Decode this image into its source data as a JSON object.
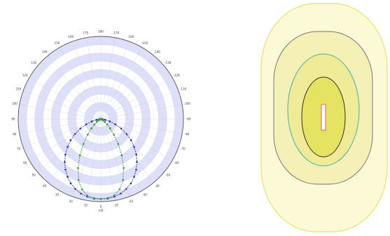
{
  "polar_diagram": {
    "angle_labels": [
      "180",
      "-170",
      "-160",
      "-150",
      "-140",
      "-130",
      "-120",
      "-110",
      "-100",
      "-90",
      "-80",
      "-70",
      "-60",
      "-50",
      "-40",
      "-30",
      "-20",
      "-10",
      "0",
      "10",
      "20",
      "30",
      "40",
      "50",
      "60",
      "70",
      "80",
      "90",
      "100",
      "110",
      "120",
      "130",
      "140",
      "150",
      "160",
      "170"
    ],
    "unit_label": "cd",
    "colors": {
      "band": "#dde0f8",
      "grid": "#c8cce4",
      "outer_ring": "#555555",
      "curve_c0": "#2b2fa6",
      "curve_c90": "#3a9a3a"
    },
    "curves": {
      "c0_c180": [
        [
          0,
          145
        ],
        [
          5,
          145
        ],
        [
          10,
          143
        ],
        [
          15,
          140
        ],
        [
          20,
          135
        ],
        [
          25,
          129
        ],
        [
          30,
          121
        ],
        [
          35,
          112
        ],
        [
          40,
          102
        ],
        [
          45,
          91
        ],
        [
          50,
          79
        ],
        [
          55,
          67
        ],
        [
          60,
          54
        ],
        [
          65,
          41
        ],
        [
          70,
          28
        ],
        [
          75,
          17
        ],
        [
          80,
          8
        ],
        [
          85,
          3
        ],
        [
          90,
          1
        ]
      ],
      "c90_c270": [
        [
          0,
          145
        ],
        [
          5,
          144
        ],
        [
          10,
          141
        ],
        [
          15,
          132
        ],
        [
          20,
          118
        ],
        [
          25,
          98
        ],
        [
          30,
          76
        ],
        [
          35,
          55
        ],
        [
          40,
          37
        ],
        [
          45,
          24
        ],
        [
          50,
          15
        ],
        [
          55,
          9
        ],
        [
          60,
          5
        ],
        [
          65,
          3
        ],
        [
          70,
          2
        ],
        [
          75,
          1
        ],
        [
          80,
          1
        ],
        [
          85,
          1
        ],
        [
          90,
          1
        ]
      ]
    }
  },
  "isolux_diagram": {
    "colors": {
      "zone_outer": "#fbf9d6",
      "zone_2": "#f5f1b6",
      "zone_3": "#efeb96",
      "zone_inner": "#e7e362",
      "line_outer": "#ece47a",
      "line_2": "#757575",
      "line_3": "#3fb0b0",
      "line_inner": "#303030",
      "luminaire_fill": "#ffffff",
      "luminaire_stroke": "#e06060"
    }
  }
}
